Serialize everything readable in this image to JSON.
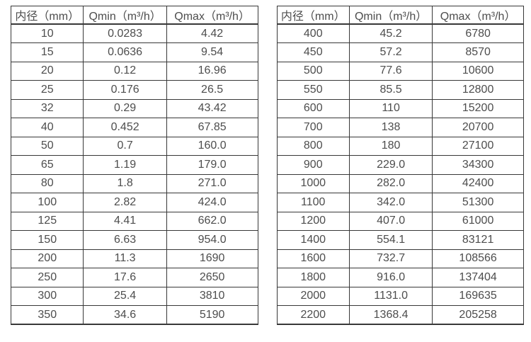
{
  "colors": {
    "background": "#ffffff",
    "border": "#383838",
    "text": "#4d4d4d"
  },
  "tables": [
    {
      "name": "small-diameter-flow-table",
      "headers": [
        "内径（mm）",
        "Qmin（m³/h）",
        "Qmax（m³/h）"
      ],
      "rows": [
        [
          "10",
          "0.0283",
          "4.42"
        ],
        [
          "15",
          "0.0636",
          "9.54"
        ],
        [
          "20",
          "0.12",
          "16.96"
        ],
        [
          "25",
          "0.176",
          "26.5"
        ],
        [
          "32",
          "0.29",
          "43.42"
        ],
        [
          "40",
          "0.452",
          "67.85"
        ],
        [
          "50",
          "0.7",
          "160.0"
        ],
        [
          "65",
          "1.19",
          "179.0"
        ],
        [
          "80",
          "1.8",
          "271.0"
        ],
        [
          "100",
          "2.82",
          "424.0"
        ],
        [
          "125",
          "4.41",
          "662.0"
        ],
        [
          "150",
          "6.63",
          "954.0"
        ],
        [
          "200",
          "11.3",
          "1690"
        ],
        [
          "250",
          "17.6",
          "2650"
        ],
        [
          "300",
          "25.4",
          "3810"
        ],
        [
          "350",
          "34.6",
          "5190"
        ]
      ]
    },
    {
      "name": "large-diameter-flow-table",
      "headers": [
        "内径（mm）",
        "Qmin（m³/h）",
        "Qmax（m³/h）"
      ],
      "rows": [
        [
          "400",
          "45.2",
          "6780"
        ],
        [
          "450",
          "57.2",
          "8570"
        ],
        [
          "500",
          "77.6",
          "10600"
        ],
        [
          "550",
          "85.5",
          "12800"
        ],
        [
          "600",
          "110",
          "15200"
        ],
        [
          "700",
          "138",
          "20700"
        ],
        [
          "800",
          "180",
          "27100"
        ],
        [
          "900",
          "229.0",
          "34300"
        ],
        [
          "1000",
          "282.0",
          "42400"
        ],
        [
          "1100",
          "342.0",
          "51300"
        ],
        [
          "1200",
          "407.0",
          "61000"
        ],
        [
          "1400",
          "554.1",
          "83121"
        ],
        [
          "1600",
          "732.7",
          "108566"
        ],
        [
          "1800",
          "916.0",
          "137404"
        ],
        [
          "2000",
          "1131.0",
          "169635"
        ],
        [
          "2200",
          "1368.4",
          "205258"
        ]
      ]
    }
  ]
}
